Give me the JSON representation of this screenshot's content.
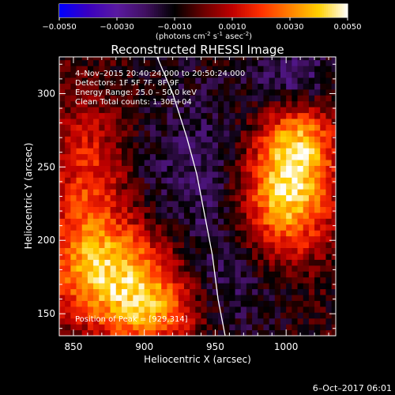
{
  "chart_data": {
    "type": "heatmap",
    "title": "Reconstructed RHESSI Image",
    "xlabel": "Heliocentric X (arcsec)",
    "ylabel": "Heliocentric Y (arcsec)",
    "xlim": [
      840,
      1035
    ],
    "ylim": [
      135,
      325
    ],
    "x_ticks": [
      850,
      900,
      950,
      1000
    ],
    "y_ticks": [
      150,
      200,
      250,
      300
    ],
    "colorbar": {
      "label_main": "(photons cm",
      "label_exp1": "-2",
      "label_mid": " s",
      "label_exp2": "-1",
      "label_end": " asec",
      "label_exp3": "-2",
      "label_close": ")",
      "range": [
        -0.005,
        0.005
      ],
      "tick_values": [
        -0.005,
        -0.003,
        -0.001,
        0.001,
        0.003,
        0.005
      ],
      "tick_labels": [
        "−0.0050",
        "−0.0030",
        "−0.0010",
        "0.0010",
        "0.0030",
        "0.0050"
      ],
      "colormap": [
        "#0000ff",
        "#3a00c0",
        "#5a1aa0",
        "#401060",
        "#000000",
        "#6a0000",
        "#c00000",
        "#ff3000",
        "#ff8000",
        "#ffd000",
        "#ffffff"
      ]
    },
    "annotations": {
      "time": "4–Nov–2015 20:40:24.000 to 20:50:24.000",
      "detectors": "Detectors: 1F 5F 7F, 8F 9F",
      "energy": "Energy Range: 25.0 – 50.0 keV",
      "clean": "Clean     Total counts: 1.30E+04",
      "peak": "Position of Peak = [929,314]"
    },
    "sources": [
      {
        "x": 1000,
        "y": 230,
        "sx": 22,
        "sy": 28,
        "amp": 0.0048
      },
      {
        "x": 1010,
        "y": 268,
        "sx": 18,
        "sy": 20,
        "amp": 0.0032
      },
      {
        "x": 880,
        "y": 180,
        "sx": 35,
        "sy": 25,
        "amp": 0.0042
      },
      {
        "x": 905,
        "y": 150,
        "sx": 25,
        "sy": 18,
        "amp": 0.0032
      },
      {
        "x": 860,
        "y": 240,
        "sx": 18,
        "sy": 40,
        "amp": 0.0025
      },
      {
        "x": 935,
        "y": 230,
        "sx": 28,
        "sy": 55,
        "amp": -0.0014
      },
      {
        "x": 1005,
        "y": 310,
        "sx": 20,
        "sy": 15,
        "amp": -0.0018
      },
      {
        "x": 960,
        "y": 170,
        "sx": 25,
        "sy": 25,
        "amp": -0.001
      }
    ],
    "limb": [
      [
        909,
        325
      ],
      [
        920,
        300
      ],
      [
        930,
        270
      ],
      [
        937,
        245
      ],
      [
        943,
        215
      ],
      [
        948,
        190
      ],
      [
        952,
        160
      ],
      [
        957,
        135
      ]
    ]
  },
  "footer": {
    "date": "6–Oct–2017 06:01"
  }
}
